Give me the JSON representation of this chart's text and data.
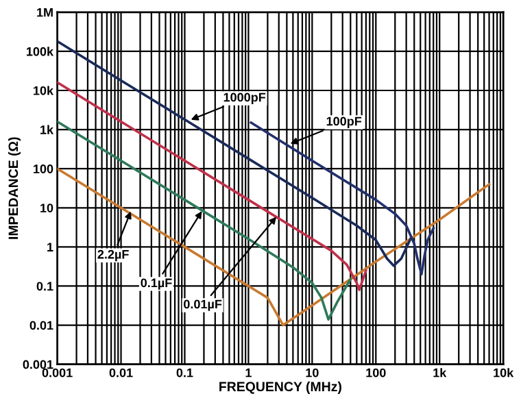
{
  "chart_data": {
    "type": "line",
    "xlabel": "FREQUENCY (MHz)",
    "ylabel": "IMPEDANCE (Ω)",
    "log": "xy",
    "grid": true,
    "marker": "none",
    "line_style": "solid",
    "xlim": [
      0.001,
      10000
    ],
    "ylim": [
      0.001,
      1000000
    ],
    "xticks": [
      {
        "value": 0.001,
        "label": "0.001"
      },
      {
        "value": 0.002,
        "label": null
      },
      {
        "value": 0.003,
        "label": null
      },
      {
        "value": 0.004,
        "label": null
      },
      {
        "value": 0.005,
        "label": null
      },
      {
        "value": 0.006,
        "label": null
      },
      {
        "value": 0.007,
        "label": null
      },
      {
        "value": 0.008,
        "label": null
      },
      {
        "value": 0.009,
        "label": null
      },
      {
        "value": 0.01,
        "label": "0.01"
      },
      {
        "value": 0.02,
        "label": null
      },
      {
        "value": 0.03,
        "label": null
      },
      {
        "value": 0.04,
        "label": null
      },
      {
        "value": 0.05,
        "label": null
      },
      {
        "value": 0.06,
        "label": null
      },
      {
        "value": 0.07,
        "label": null
      },
      {
        "value": 0.08,
        "label": null
      },
      {
        "value": 0.09,
        "label": null
      },
      {
        "value": 0.1,
        "label": "0.1"
      },
      {
        "value": 0.2,
        "label": null
      },
      {
        "value": 0.3,
        "label": null
      },
      {
        "value": 0.4,
        "label": null
      },
      {
        "value": 0.5,
        "label": null
      },
      {
        "value": 0.6,
        "label": null
      },
      {
        "value": 0.7,
        "label": null
      },
      {
        "value": 0.8,
        "label": null
      },
      {
        "value": 0.9,
        "label": null
      },
      1,
      {
        "value": 2,
        "label": null
      },
      {
        "value": 3,
        "label": null
      },
      {
        "value": 4,
        "label": null
      },
      {
        "value": 5,
        "label": null
      },
      {
        "value": 6,
        "label": null
      },
      {
        "value": 7,
        "label": null
      },
      {
        "value": 8,
        "label": null
      },
      {
        "value": 9,
        "label": null
      },
      10,
      {
        "value": 20,
        "label": null
      },
      {
        "value": 30,
        "label": null
      },
      {
        "value": 40,
        "label": null
      },
      {
        "value": 50,
        "label": null
      },
      {
        "value": 60,
        "label": null
      },
      {
        "value": 70,
        "label": null
      },
      {
        "value": 80,
        "label": null
      },
      {
        "value": 90,
        "label": null
      },
      100,
      {
        "value": 200,
        "label": null
      },
      {
        "value": 300,
        "label": null
      },
      {
        "value": 400,
        "label": null
      },
      {
        "value": 500,
        "label": null
      },
      {
        "value": 600,
        "label": null
      },
      {
        "value": 700,
        "label": null
      },
      {
        "value": 800,
        "label": null
      },
      {
        "value": 900,
        "label": null
      },
      {
        "value": 1000,
        "label": "1k"
      },
      {
        "value": 2000,
        "label": null
      },
      {
        "value": 3000,
        "label": null
      },
      {
        "value": 4000,
        "label": null
      },
      {
        "value": 5000,
        "label": null
      },
      {
        "value": 6000,
        "label": null
      },
      {
        "value": 7000,
        "label": null
      },
      {
        "value": 8000,
        "label": null
      },
      {
        "value": 9000,
        "label": null
      },
      {
        "value": 10000,
        "label": "10k"
      }
    ],
    "yticks": [
      {
        "value": 0.001,
        "label": "0.001"
      },
      {
        "value": 0.01,
        "label": "0.01"
      },
      {
        "value": 0.1,
        "label": "0.1"
      },
      1,
      10,
      100,
      {
        "value": 1000,
        "label": "1k"
      },
      {
        "value": 10000,
        "label": "10k"
      },
      {
        "value": 100000,
        "label": "100k"
      },
      {
        "value": 1000000,
        "label": "1M"
      }
    ],
    "series": [
      {
        "color": "#c87a30",
        "x": [
          0.001,
          0.01,
          0.1,
          1,
          2,
          3.5,
          10,
          40,
          100,
          1000,
          6000
        ],
        "values": [
          100,
          10,
          1,
          0.1,
          0.05,
          0.01,
          0.032,
          0.15,
          0.42,
          5,
          40
        ]
      },
      {
        "color": "#2e7a5a",
        "x": [
          0.001,
          0.01,
          0.1,
          1,
          5,
          10,
          14,
          18,
          25,
          40
        ],
        "values": [
          1600,
          160,
          16,
          1.6,
          0.3,
          0.12,
          0.05,
          0.014,
          0.04,
          0.15
        ]
      },
      {
        "color": "#c0304a",
        "x": [
          0.001,
          0.01,
          0.1,
          1,
          10,
          20,
          35,
          50,
          55,
          70
        ],
        "values": [
          16000,
          1600,
          160,
          16,
          1.6,
          0.8,
          0.35,
          0.12,
          0.08,
          0.25
        ]
      },
      {
        "color": "#1a2a5a",
        "x": [
          0.001,
          0.01,
          0.1,
          1,
          10,
          50,
          100,
          150,
          190,
          250,
          350
        ],
        "values": [
          180000,
          18000,
          1800,
          180,
          18,
          3.5,
          1.5,
          0.5,
          0.33,
          0.5,
          1.6
        ]
      },
      {
        "color": "#22306e",
        "x": [
          1.1,
          10,
          100,
          200,
          300,
          400,
          450,
          520,
          580,
          650,
          800
        ],
        "values": [
          1500,
          160,
          16,
          7,
          3.5,
          1.2,
          0.5,
          0.2,
          0.6,
          1.5,
          3
        ]
      }
    ],
    "annotations": [
      {
        "text": "2.2µF",
        "x": 0.015,
        "y": 10
      },
      {
        "text": "0.1µF",
        "x": 0.2,
        "y": 10
      },
      {
        "text": "0.01µF",
        "x": 3,
        "y": 7
      },
      {
        "text": "1000pF",
        "x": 0.11,
        "y": 1640
      },
      {
        "text": "100pF",
        "x": 4,
        "y": 400
      }
    ]
  }
}
